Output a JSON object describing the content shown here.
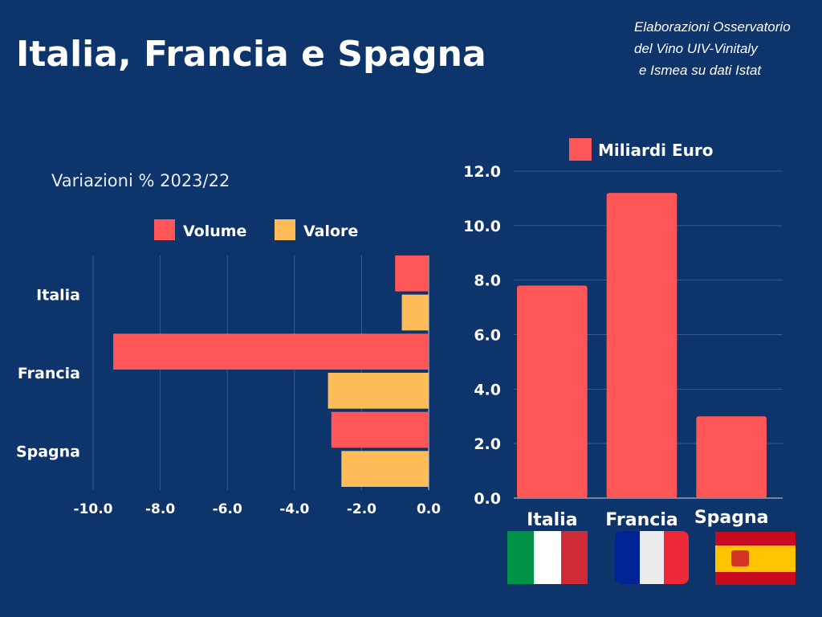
{
  "title": "Italia, Francia e Spagna",
  "source": [
    "Elaborazioni Osservatorio",
    "del Vino UIV-Vinitaly",
    "e Ismea su dati Istat"
  ],
  "colors": {
    "background": "#0d346b",
    "volume": "#ff5757",
    "valore": "#ffbd59",
    "gridline": "#3a5a8a"
  },
  "flags": [
    "italy-flag",
    "france-flag",
    "spain-flag"
  ],
  "chart_data": [
    {
      "type": "bar",
      "orientation": "horizontal",
      "title": "Variazioni % 2023/22",
      "categories": [
        "Italia",
        "Francia",
        "Spagna"
      ],
      "series": [
        {
          "name": "Volume",
          "values": [
            -1.0,
            -9.4,
            -2.9
          ]
        },
        {
          "name": "Valore",
          "values": [
            -0.8,
            -3.0,
            -2.6
          ]
        }
      ],
      "xlim": [
        -10,
        0
      ],
      "xticks": [
        "-10.0",
        "-8.0",
        "-6.0",
        "-4.0",
        "-2.0",
        "0.0"
      ],
      "grid": true,
      "legend": "top"
    },
    {
      "type": "bar",
      "categories": [
        "Italia",
        "Francia",
        "Spagna"
      ],
      "series": [
        {
          "name": "Miliardi Euro",
          "values": [
            7.8,
            11.2,
            3.0
          ]
        }
      ],
      "ylim": [
        0,
        12
      ],
      "yticks": [
        "0.0",
        "2.0",
        "4.0",
        "6.0",
        "8.0",
        "10.0",
        "12.0"
      ],
      "grid": true,
      "legend": "top"
    }
  ]
}
